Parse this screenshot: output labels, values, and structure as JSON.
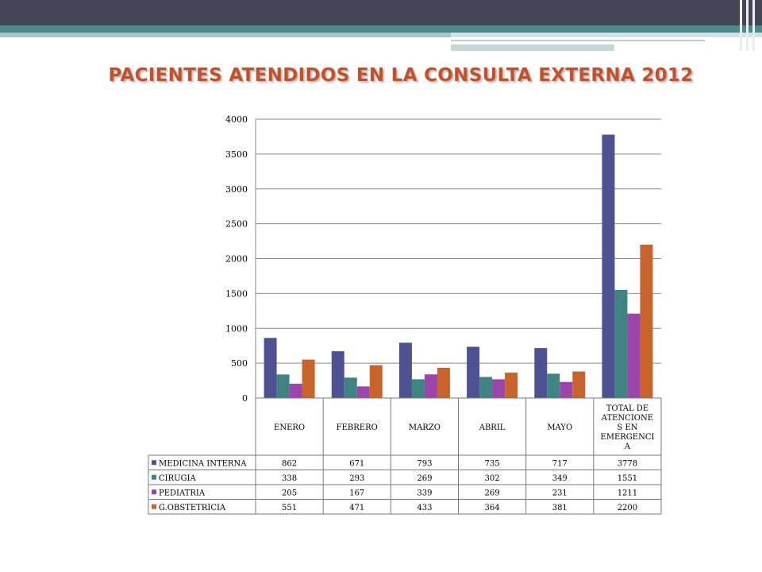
{
  "slide": {
    "title": "PACIENTES ATENDIDOS EN LA CONSULTA EXTERNA 2012"
  },
  "colors": {
    "band_dark": "#424456",
    "band_teal": "#4a8a8c",
    "title": "#c0532e"
  },
  "chart_data": {
    "type": "bar",
    "categories": [
      "ENERO",
      "FEBRERO",
      "MARZO",
      "ABRIL",
      "MAYO",
      "TOTAL DE ATENCIONES EN EMERGENCIA"
    ],
    "category_lines": [
      [
        "ENERO"
      ],
      [
        "FEBRERO"
      ],
      [
        "MARZO"
      ],
      [
        "ABRIL"
      ],
      [
        "MAYO"
      ],
      [
        "TOTAL DE",
        "ATENCIONE",
        "S EN",
        "EMERGENCI",
        "A"
      ]
    ],
    "series": [
      {
        "name": "MEDICINA INTERNA",
        "color": "#4e5192",
        "values": [
          862,
          671,
          793,
          735,
          717,
          3778
        ]
      },
      {
        "name": "CIRUGIA",
        "color": "#3e8483",
        "values": [
          338,
          293,
          269,
          302,
          349,
          1551
        ]
      },
      {
        "name": "PEDIATRIA",
        "color": "#9b45ad",
        "values": [
          205,
          167,
          339,
          269,
          231,
          1211
        ]
      },
      {
        "name": "G.OBSTETRICIA",
        "color": "#c8632c",
        "values": [
          551,
          471,
          433,
          364,
          381,
          2200
        ]
      }
    ],
    "ylim": [
      0,
      4000
    ],
    "yticks": [
      0,
      500,
      1000,
      1500,
      2000,
      2500,
      3000,
      3500,
      4000
    ],
    "grid": true,
    "legend": "data-table"
  }
}
